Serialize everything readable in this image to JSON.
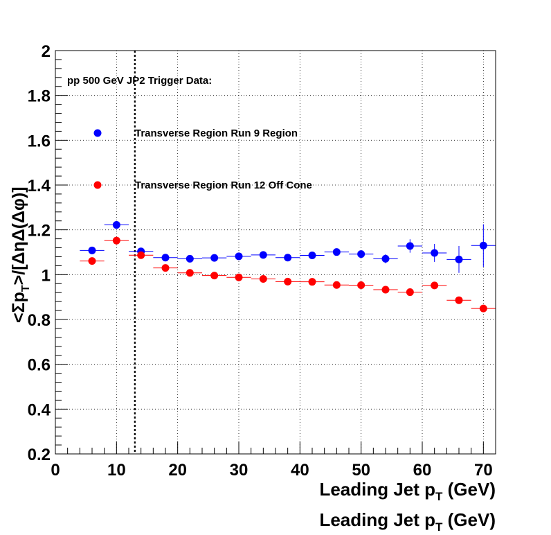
{
  "chart_data": {
    "type": "scatter",
    "xlabel": "Leading Jet p",
    "xlabel_sub": "T",
    "xlabel_unit": " (GeV)",
    "ylabel": "<Σp",
    "ylabel_sub": "T",
    "ylabel_tail": ">/[ΔηΔ(Δφ)]",
    "xlim": [
      0,
      72
    ],
    "ylim": [
      0.2,
      2
    ],
    "x_ticks": [
      0,
      10,
      20,
      30,
      40,
      50,
      60,
      70
    ],
    "y_ticks": [
      0.2,
      0.4,
      0.6,
      0.8,
      1,
      1.2,
      1.4,
      1.6,
      1.8,
      2
    ],
    "x_tick_labels": [
      "0",
      "10",
      "20",
      "30",
      "40",
      "50",
      "60",
      "70"
    ],
    "y_tick_labels": [
      "0.2",
      "0.4",
      "0.6",
      "0.8",
      "1",
      "1.2",
      "1.4",
      "1.6",
      "1.8",
      "2"
    ],
    "grid": true,
    "vertical_line_x": 13,
    "legend_header": "pp 500 GeV JP2 Trigger Data:",
    "legend_placement": "top-left",
    "series": [
      {
        "name": "Transverse Region Run 9 Region",
        "color": "#0000ff",
        "x": [
          6,
          10,
          14,
          18,
          22,
          26,
          30,
          34,
          38,
          42,
          46,
          50,
          54,
          58,
          62,
          66,
          70
        ],
        "y": [
          1.108,
          1.222,
          1.104,
          1.076,
          1.071,
          1.075,
          1.082,
          1.088,
          1.076,
          1.086,
          1.101,
          1.092,
          1.071,
          1.128,
          1.097,
          1.068,
          1.13
        ],
        "xerr": [
          2,
          2,
          2,
          2,
          2,
          2,
          2,
          2,
          2,
          2,
          2,
          2,
          2,
          2,
          2,
          2,
          2
        ],
        "yerr": [
          0.008,
          0.012,
          0.008,
          0.008,
          0.008,
          0.008,
          0.008,
          0.01,
          0.01,
          0.012,
          0.014,
          0.016,
          0.02,
          0.03,
          0.04,
          0.06,
          0.095
        ]
      },
      {
        "name": "Transverse Region Run 12 Off Cone",
        "color": "#ff0000",
        "x": [
          6,
          10,
          14,
          18,
          22,
          26,
          30,
          34,
          38,
          42,
          46,
          50,
          54,
          58,
          62,
          66,
          70
        ],
        "y": [
          1.061,
          1.152,
          1.087,
          1.03,
          1.008,
          0.996,
          0.988,
          0.981,
          0.969,
          0.968,
          0.954,
          0.953,
          0.933,
          0.922,
          0.952,
          0.886,
          0.849
        ],
        "xerr": [
          2,
          2,
          2,
          2,
          2,
          2,
          2,
          2,
          2,
          2,
          2,
          2,
          2,
          2,
          2,
          2,
          2
        ],
        "yerr": [
          0.005,
          0.006,
          0.005,
          0.005,
          0.005,
          0.005,
          0.005,
          0.006,
          0.006,
          0.006,
          0.007,
          0.008,
          0.009,
          0.01,
          0.012,
          0.013,
          0.015
        ]
      }
    ]
  }
}
